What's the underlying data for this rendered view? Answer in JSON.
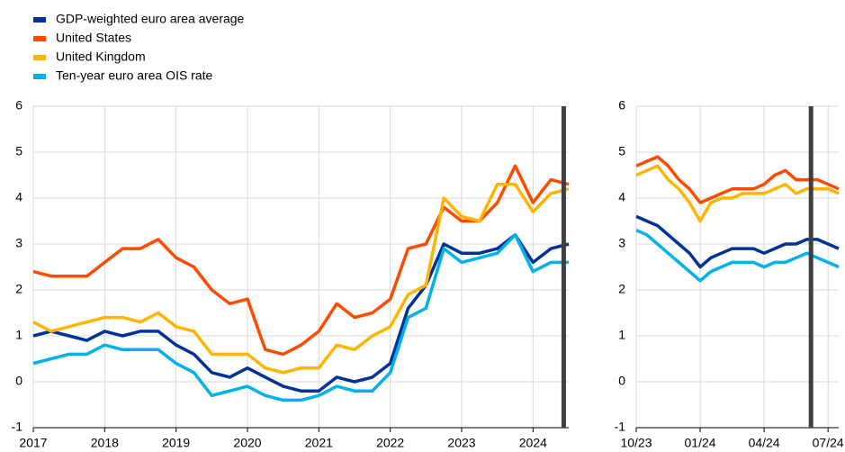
{
  "chart_data": [
    {
      "type": "line",
      "x": [
        2017,
        2017.25,
        2017.5,
        2017.75,
        2018,
        2018.25,
        2018.5,
        2018.75,
        2019,
        2019.25,
        2019.5,
        2019.75,
        2020,
        2020.25,
        2020.5,
        2020.75,
        2021,
        2021.25,
        2021.5,
        2021.75,
        2022,
        2022.25,
        2022.5,
        2022.75,
        2023,
        2023.25,
        2023.5,
        2023.75,
        2024,
        2024.25,
        2024.5
      ],
      "series": [
        {
          "name": "GDP-weighted euro area average",
          "color": "#003299",
          "values": [
            1.0,
            1.1,
            1.0,
            0.9,
            1.1,
            1.0,
            1.1,
            1.1,
            0.8,
            0.6,
            0.2,
            0.1,
            0.3,
            0.1,
            -0.1,
            -0.2,
            -0.2,
            0.1,
            0.0,
            0.1,
            0.4,
            1.6,
            2.1,
            3.0,
            2.8,
            2.8,
            2.9,
            3.2,
            2.6,
            2.9,
            3.0
          ]
        },
        {
          "name": "United States",
          "color": "#ff4b00",
          "values": [
            2.4,
            2.3,
            2.3,
            2.3,
            2.6,
            2.9,
            2.9,
            3.1,
            2.7,
            2.5,
            2.0,
            1.7,
            1.8,
            0.7,
            0.6,
            0.8,
            1.1,
            1.7,
            1.4,
            1.5,
            1.8,
            2.9,
            3.0,
            3.8,
            3.5,
            3.5,
            3.9,
            4.7,
            3.9,
            4.4,
            4.3
          ]
        },
        {
          "name": "United Kingdom",
          "color": "#ffb400",
          "values": [
            1.3,
            1.1,
            1.2,
            1.3,
            1.4,
            1.4,
            1.3,
            1.5,
            1.2,
            1.1,
            0.6,
            0.6,
            0.6,
            0.3,
            0.2,
            0.3,
            0.3,
            0.8,
            0.7,
            1.0,
            1.2,
            1.9,
            2.1,
            4.0,
            3.6,
            3.5,
            4.3,
            4.3,
            3.7,
            4.1,
            4.2
          ]
        },
        {
          "name": "Ten-year euro area OIS rate",
          "color": "#00b1ea",
          "values": [
            0.4,
            0.5,
            0.6,
            0.6,
            0.8,
            0.7,
            0.7,
            0.7,
            0.4,
            0.2,
            -0.3,
            -0.2,
            -0.1,
            -0.3,
            -0.4,
            -0.4,
            -0.3,
            -0.1,
            -0.2,
            -0.2,
            0.2,
            1.4,
            1.6,
            2.9,
            2.6,
            2.7,
            2.8,
            3.2,
            2.4,
            2.6,
            2.6
          ]
        }
      ],
      "xlim": [
        2017,
        2024.5
      ],
      "xticks": [
        2017,
        2018,
        2019,
        2020,
        2021,
        2022,
        2023,
        2024
      ],
      "ylim": [
        -1,
        6
      ],
      "yticks": [
        -1,
        0,
        1,
        2,
        3,
        4,
        5,
        6
      ],
      "vline": 2024.43,
      "vline_color": "#404040",
      "grid": true
    },
    {
      "type": "line",
      "x": [
        0,
        0.5,
        1,
        1.5,
        2,
        2.5,
        3,
        3.5,
        4,
        4.5,
        5,
        5.5,
        6,
        6.5,
        7,
        7.5,
        8,
        8.5,
        9,
        9.5
      ],
      "series": [
        {
          "color": "#003299",
          "values": [
            3.6,
            3.5,
            3.4,
            3.2,
            3.0,
            2.8,
            2.5,
            2.7,
            2.8,
            2.9,
            2.9,
            2.9,
            2.8,
            2.9,
            3.0,
            3.0,
            3.1,
            3.1,
            3.0,
            2.9
          ]
        },
        {
          "color": "#ff4b00",
          "values": [
            4.7,
            4.8,
            4.9,
            4.7,
            4.4,
            4.2,
            3.9,
            4.0,
            4.1,
            4.2,
            4.2,
            4.2,
            4.3,
            4.5,
            4.6,
            4.4,
            4.4,
            4.4,
            4.3,
            4.2
          ]
        },
        {
          "color": "#ffb400",
          "values": [
            4.5,
            4.6,
            4.7,
            4.4,
            4.2,
            3.9,
            3.5,
            3.9,
            4.0,
            4.0,
            4.1,
            4.1,
            4.1,
            4.2,
            4.3,
            4.1,
            4.2,
            4.2,
            4.2,
            4.1
          ]
        },
        {
          "color": "#00b1ea",
          "values": [
            3.3,
            3.2,
            3.0,
            2.8,
            2.6,
            2.4,
            2.2,
            2.4,
            2.5,
            2.6,
            2.6,
            2.6,
            2.5,
            2.6,
            2.6,
            2.7,
            2.8,
            2.7,
            2.6,
            2.5
          ]
        }
      ],
      "xlim": [
        0,
        9.5
      ],
      "xticks": [
        {
          "value": 0,
          "label": "10/23"
        },
        {
          "value": 3,
          "label": "01/24"
        },
        {
          "value": 6,
          "label": "04/24"
        },
        {
          "value": 9,
          "label": "07/24"
        }
      ],
      "ylim": [
        -1,
        6
      ],
      "yticks": [
        -1,
        0,
        1,
        2,
        3,
        4,
        5,
        6
      ],
      "vline": 8.2,
      "vline_color": "#404040",
      "grid": true
    }
  ]
}
